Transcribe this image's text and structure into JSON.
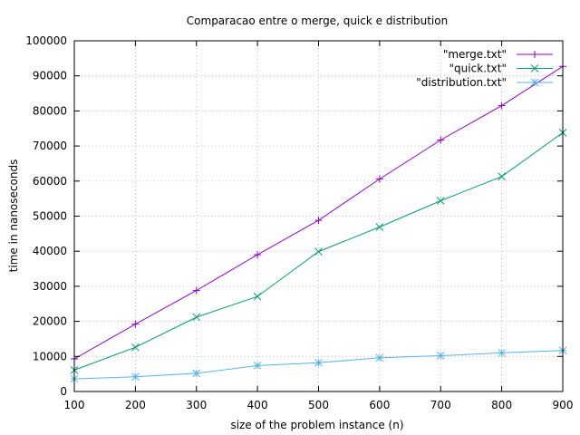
{
  "chart_data": {
    "type": "line",
    "title": "Comparacao entre o merge, quick e distribution",
    "xlabel": "size of the problem instance (n)",
    "ylabel": "time in nanoseconds",
    "xlim": [
      100,
      900
    ],
    "ylim": [
      0,
      100000
    ],
    "x_ticks": [
      100,
      200,
      300,
      400,
      500,
      600,
      700,
      800,
      900
    ],
    "y_ticks": [
      0,
      10000,
      20000,
      30000,
      40000,
      50000,
      60000,
      70000,
      80000,
      90000,
      100000
    ],
    "grid": true,
    "legend_position": "top-right",
    "x": [
      100,
      200,
      300,
      400,
      500,
      600,
      700,
      800,
      900
    ],
    "series": [
      {
        "name": "\"merge.txt\"",
        "color": "#9400d3",
        "marker": "plus",
        "values": [
          9300,
          19200,
          28800,
          39000,
          48800,
          60600,
          71700,
          81500,
          92700
        ]
      },
      {
        "name": "\"quick.txt\"",
        "color": "#009e73",
        "marker": "cross",
        "values": [
          6100,
          12600,
          21200,
          27100,
          39900,
          46900,
          54400,
          61300,
          73800
        ]
      },
      {
        "name": "\"distribution.txt\"",
        "color": "#56b4e9",
        "marker": "star",
        "values": [
          3600,
          4200,
          5200,
          7400,
          8200,
          9600,
          10200,
          11000,
          11700
        ]
      }
    ]
  }
}
